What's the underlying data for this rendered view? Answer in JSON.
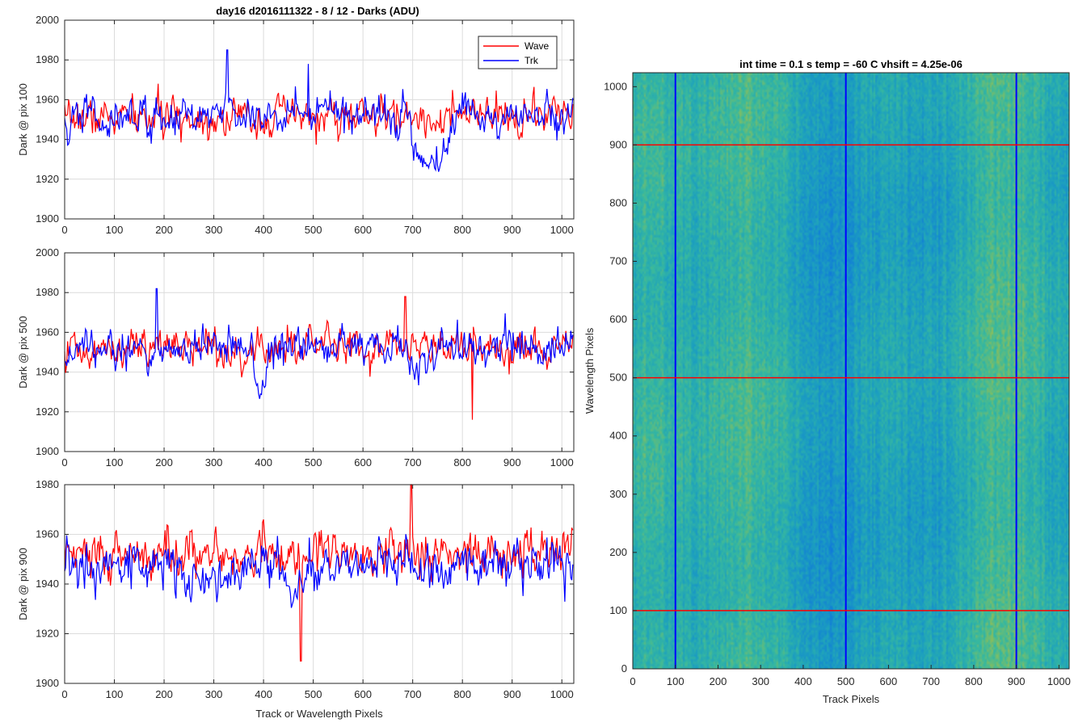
{
  "figure_title": "day16 d2016111322 - 8 / 12 - Darks (ADU)",
  "chart_data": [
    {
      "type": "line",
      "ylabel": "Dark @ pix 100",
      "xlabel": "",
      "xlim": [
        0,
        1024
      ],
      "ylim": [
        1900,
        2000
      ],
      "xticks": [
        "0",
        "100",
        "200",
        "300",
        "400",
        "500",
        "600",
        "700",
        "800",
        "900",
        "1000"
      ],
      "yticks": [
        "1900",
        "1920",
        "1940",
        "1960",
        "1980",
        "2000"
      ],
      "grid": true,
      "legend_position": "top-right",
      "series": [
        {
          "name": "Wave",
          "color": "#ff0000",
          "mean": 1951,
          "noise": 8,
          "dips": [
            [
              0,
              10,
              1942
            ]
          ]
        },
        {
          "name": "Trk",
          "color": "#0000ff",
          "mean": 1952,
          "noise": 8,
          "dips": [
            [
              0,
              15,
              1938
            ],
            [
              690,
              780,
              1924
            ]
          ],
          "spikes": [
            [
              327,
              1985
            ],
            [
              490,
              1978
            ]
          ]
        }
      ]
    },
    {
      "type": "line",
      "ylabel": "Dark @ pix 500",
      "xlabel": "",
      "xlim": [
        0,
        1024
      ],
      "ylim": [
        1900,
        2000
      ],
      "xticks": [
        "0",
        "100",
        "200",
        "300",
        "400",
        "500",
        "600",
        "700",
        "800",
        "900",
        "1000"
      ],
      "yticks": [
        "1900",
        "1920",
        "1940",
        "1960",
        "1980",
        "2000"
      ],
      "grid": true,
      "series": [
        {
          "name": "Wave",
          "color": "#ff0000",
          "mean": 1952,
          "noise": 8,
          "dips": [],
          "spikes": [
            [
              685,
              1978
            ],
            [
              820,
              1916
            ]
          ]
        },
        {
          "name": "Trk",
          "color": "#0000ff",
          "mean": 1952,
          "noise": 8,
          "dips": [
            [
              380,
              410,
              1928
            ],
            [
              690,
              720,
              1942
            ]
          ],
          "spikes": [
            [
              185,
              1982
            ]
          ]
        }
      ]
    },
    {
      "type": "line",
      "ylabel": "Dark @ pix 900",
      "xlabel": "Track or Wavelength Pixels",
      "xlim": [
        0,
        1024
      ],
      "ylim": [
        1900,
        1980
      ],
      "xticks": [
        "0",
        "100",
        "200",
        "300",
        "400",
        "500",
        "600",
        "700",
        "800",
        "900",
        "1000"
      ],
      "yticks": [
        "1900",
        "1920",
        "1940",
        "1960",
        "1980"
      ],
      "grid": true,
      "series": [
        {
          "name": "Wave",
          "color": "#ff0000",
          "mean": 1952,
          "noise": 8,
          "dips": [],
          "spikes": [
            [
              475,
              1909
            ],
            [
              697,
              1980
            ]
          ]
        },
        {
          "name": "Trk",
          "color": "#0000ff",
          "mean": 1948,
          "noise": 8,
          "dips": [
            [
              220,
              370,
              1940
            ],
            [
              440,
              490,
              1932
            ]
          ],
          "spikes": []
        }
      ]
    },
    {
      "type": "heatmap",
      "title": "int time = 0.1 s   temp = -60 C   vhsift = 4.25e-06",
      "xlabel": "Track Pixels",
      "ylabel": "Wavelength Pixels",
      "xlim": [
        0,
        1024
      ],
      "ylim": [
        0,
        1024
      ],
      "xticks": [
        "0",
        "100",
        "200",
        "300",
        "400",
        "500",
        "600",
        "700",
        "800",
        "900",
        "1000"
      ],
      "yticks": [
        "0",
        "100",
        "200",
        "300",
        "400",
        "500",
        "600",
        "700",
        "800",
        "900",
        "1000"
      ],
      "colormap": "parula",
      "vertical_markers": {
        "color": "#0000ff",
        "x": [
          100,
          500,
          900
        ]
      },
      "horizontal_markers": {
        "color": "#ff0000",
        "y": [
          100,
          500,
          900
        ]
      }
    }
  ]
}
